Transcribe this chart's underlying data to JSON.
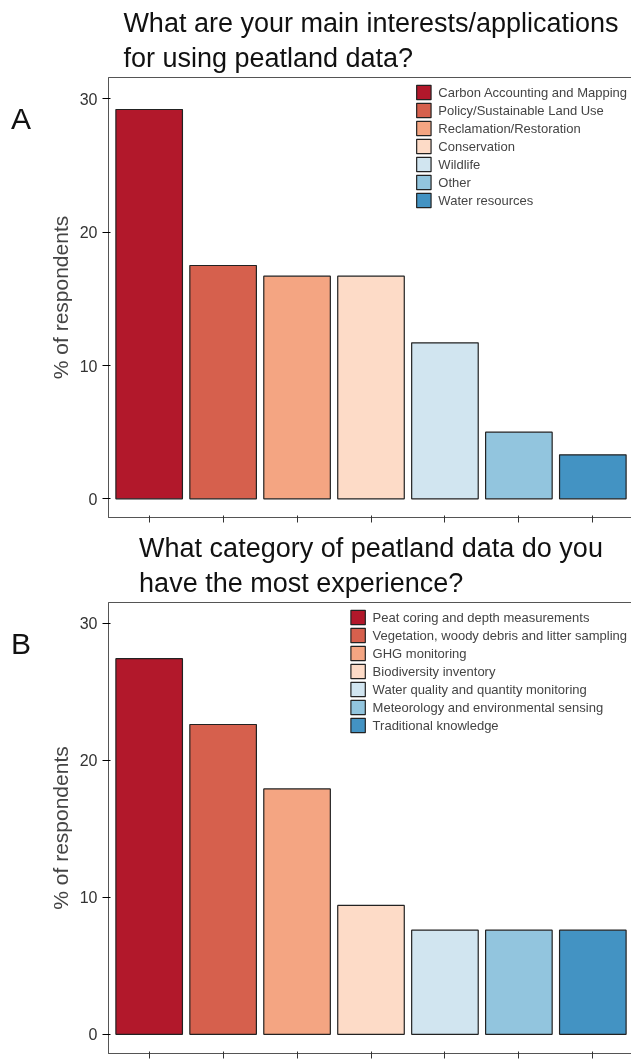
{
  "chart_data": [
    {
      "type": "bar",
      "title": "What are your main interests/applications\nfor using peatland data?",
      "ylabel": "% of respondents",
      "annotations": [
        "A"
      ],
      "categories": [
        null,
        null,
        null,
        null,
        null,
        null,
        null
      ],
      "series": [
        {
          "name": "Carbon Accounting and Mapping",
          "color": "#b2182b",
          "values": [
            29.2,
            null,
            null,
            null,
            null,
            null,
            null
          ]
        },
        {
          "name": "Policy/Sustainable Land Use",
          "color": "#d6604d",
          "values": [
            null,
            17.5,
            null,
            null,
            null,
            null,
            null
          ]
        },
        {
          "name": "Reclamation/Restoration",
          "color": "#f4a582",
          "values": [
            null,
            null,
            16.7,
            null,
            null,
            null,
            null
          ]
        },
        {
          "name": "Conservation",
          "color": "#fddbc7",
          "values": [
            null,
            null,
            null,
            16.7,
            null,
            null,
            null
          ]
        },
        {
          "name": "Wildlife",
          "color": "#d1e5f0",
          "values": [
            null,
            null,
            null,
            null,
            11.7,
            null,
            null
          ]
        },
        {
          "name": "Other",
          "color": "#92c5de",
          "values": [
            null,
            null,
            null,
            null,
            null,
            5.0,
            null
          ]
        },
        {
          "name": "Water resources",
          "color": "#4393c3",
          "values": [
            null,
            null,
            null,
            null,
            null,
            null,
            3.3
          ]
        }
      ],
      "ylim": [
        -1.4,
        31.6
      ],
      "yticks": [
        0,
        10,
        20,
        30
      ],
      "grid": false,
      "legend": "top right"
    },
    {
      "type": "bar",
      "title": "What category of peatland data do you\nhave the most experience?",
      "ylabel": "% of respondents",
      "annotations": [
        "B"
      ],
      "categories": [
        null,
        null,
        null,
        null,
        null,
        null,
        null
      ],
      "series": [
        {
          "name": "Peat coring and depth measurements",
          "color": "#b2182b",
          "values": [
            27.4,
            null,
            null,
            null,
            null,
            null,
            null
          ]
        },
        {
          "name": "Vegetation, woody debris and litter sampling",
          "color": "#d6604d",
          "values": [
            null,
            22.6,
            null,
            null,
            null,
            null,
            null
          ]
        },
        {
          "name": "GHG monitoring",
          "color": "#f4a582",
          "values": [
            null,
            null,
            17.9,
            null,
            null,
            null,
            null
          ]
        },
        {
          "name": "Biodiversity inventory",
          "color": "#fddbc7",
          "values": [
            null,
            null,
            null,
            9.4,
            null,
            null,
            null
          ]
        },
        {
          "name": "Water quality and quantity monitoring",
          "color": "#d1e5f0",
          "values": [
            null,
            null,
            null,
            null,
            7.6,
            null,
            null
          ]
        },
        {
          "name": "Meteorology and environmental sensing",
          "color": "#92c5de",
          "values": [
            null,
            null,
            null,
            null,
            null,
            7.6,
            null
          ]
        },
        {
          "name": "Traditional knowledge",
          "color": "#4393c3",
          "values": [
            null,
            null,
            null,
            null,
            null,
            null,
            7.6
          ]
        }
      ],
      "ylim": [
        -1.4,
        31.5
      ],
      "yticks": [
        0,
        10,
        20,
        30
      ],
      "grid": false,
      "legend": "top right"
    }
  ]
}
